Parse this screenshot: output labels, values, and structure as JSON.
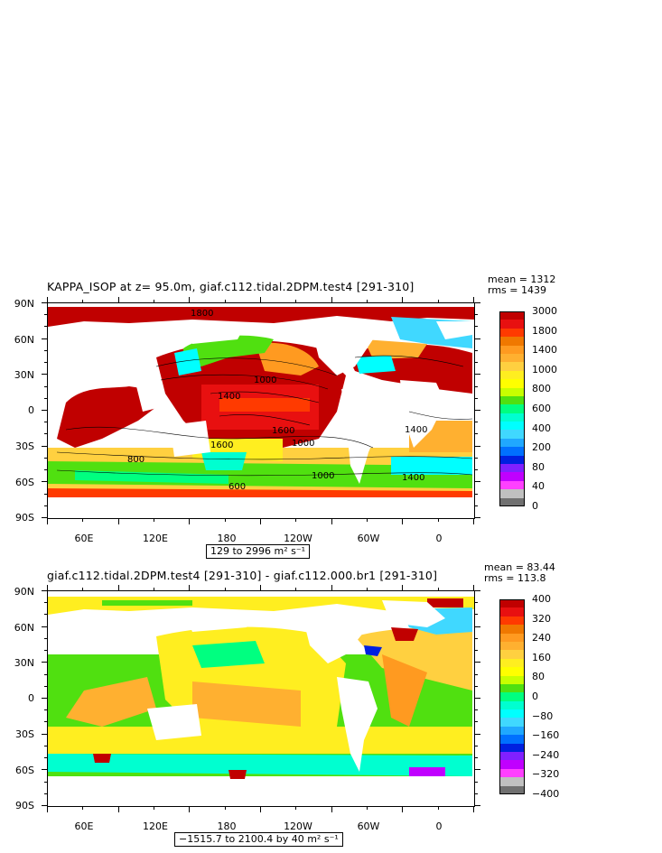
{
  "panels": [
    {
      "title": "KAPPA_ISOP at z=  95.0m, giaf.c112.tidal.2DPM.test4 [291-310]",
      "mean": "mean = 1312",
      "rms": "rms = 1439",
      "range": "129 to 2996 m² s⁻¹",
      "yticks": [
        "90N",
        "60N",
        "30N",
        "0",
        "30S",
        "60S",
        "90S"
      ],
      "xticks": [
        "60E",
        "120E",
        "180",
        "120W",
        "60W",
        "0"
      ],
      "colorbar": {
        "labels": [
          "3000",
          "1800",
          "1400",
          "1000",
          "800",
          "600",
          "400",
          "200",
          "80",
          "40",
          "0"
        ],
        "colors": [
          "#c00000",
          "#e81010",
          "#ff3a00",
          "#f07800",
          "#ff9a20",
          "#ffb030",
          "#ffd040",
          "#ffee20",
          "#ffff00",
          "#c8ff00",
          "#50e010",
          "#00ff80",
          "#00ffd0",
          "#00ffff",
          "#40d8ff",
          "#20a8ff",
          "#0070ff",
          "#0020e0",
          "#8020ff",
          "#c000ff",
          "#ff40ff",
          "#c0c0c0",
          "#707070"
        ]
      },
      "contour_labels": [
        "1800",
        "1400",
        "1600",
        "1000",
        "800",
        "600",
        "1800",
        "1400",
        "1000",
        "800",
        "1600",
        "1000",
        "1400"
      ]
    },
    {
      "title": "giaf.c112.tidal.2DPM.test4 [291-310] - giaf.c112.000.br1 [291-310]",
      "mean": "mean = 83.44",
      "rms": "rms = 113.8",
      "range": "−1515.7 to 2100.4 by 40 m² s⁻¹",
      "yticks": [
        "90N",
        "60N",
        "30N",
        "0",
        "30S",
        "60S",
        "90S"
      ],
      "xticks": [
        "60E",
        "120E",
        "180",
        "120W",
        "60W",
        "0"
      ],
      "colorbar": {
        "labels": [
          "400",
          "320",
          "240",
          "160",
          "80",
          "0",
          "−80",
          "−160",
          "−240",
          "−320",
          "−400"
        ],
        "colors": [
          "#c00000",
          "#e81010",
          "#ff3a00",
          "#f07800",
          "#ff9a20",
          "#ffb030",
          "#ffd040",
          "#ffee20",
          "#ffff00",
          "#c8ff00",
          "#50e010",
          "#00ff80",
          "#00ffd0",
          "#00ffff",
          "#40d8ff",
          "#20a8ff",
          "#0070ff",
          "#0020e0",
          "#8020ff",
          "#c000ff",
          "#ff40ff",
          "#c0c0c0",
          "#707070"
        ]
      }
    }
  ],
  "chart_data": [
    {
      "type": "heatmap",
      "title": "KAPPA_ISOP at z=  95.0m, giaf.c112.tidal.2DPM.test4 [291-310]",
      "xlabel": "",
      "ylabel": "",
      "x_ticks": [
        "60E",
        "120E",
        "180",
        "120W",
        "60W",
        "0"
      ],
      "y_ticks": [
        "90N",
        "60N",
        "30N",
        "0",
        "30S",
        "60S",
        "90S"
      ],
      "ylim": [
        -90,
        90
      ],
      "stats": {
        "mean": 1312,
        "rms": 1439
      },
      "value_range": {
        "min": 129,
        "max": 2996,
        "units": "m2 s-1"
      },
      "levels": [
        0,
        40,
        80,
        200,
        400,
        600,
        800,
        1000,
        1400,
        1800,
        3000
      ]
    },
    {
      "type": "heatmap",
      "title": "giaf.c112.tidal.2DPM.test4 [291-310] - giaf.c112.000.br1 [291-310]",
      "xlabel": "",
      "ylabel": "",
      "x_ticks": [
        "60E",
        "120E",
        "180",
        "120W",
        "60W",
        "0"
      ],
      "y_ticks": [
        "90N",
        "60N",
        "30N",
        "0",
        "30S",
        "60S",
        "90S"
      ],
      "ylim": [
        -90,
        90
      ],
      "stats": {
        "mean": 83.44,
        "rms": 113.8
      },
      "value_range": {
        "min": -1515.7,
        "max": 2100.4,
        "step": 40,
        "units": "m2 s-1"
      },
      "levels": [
        -400,
        -320,
        -240,
        -160,
        -80,
        0,
        80,
        160,
        240,
        320,
        400
      ]
    }
  ]
}
